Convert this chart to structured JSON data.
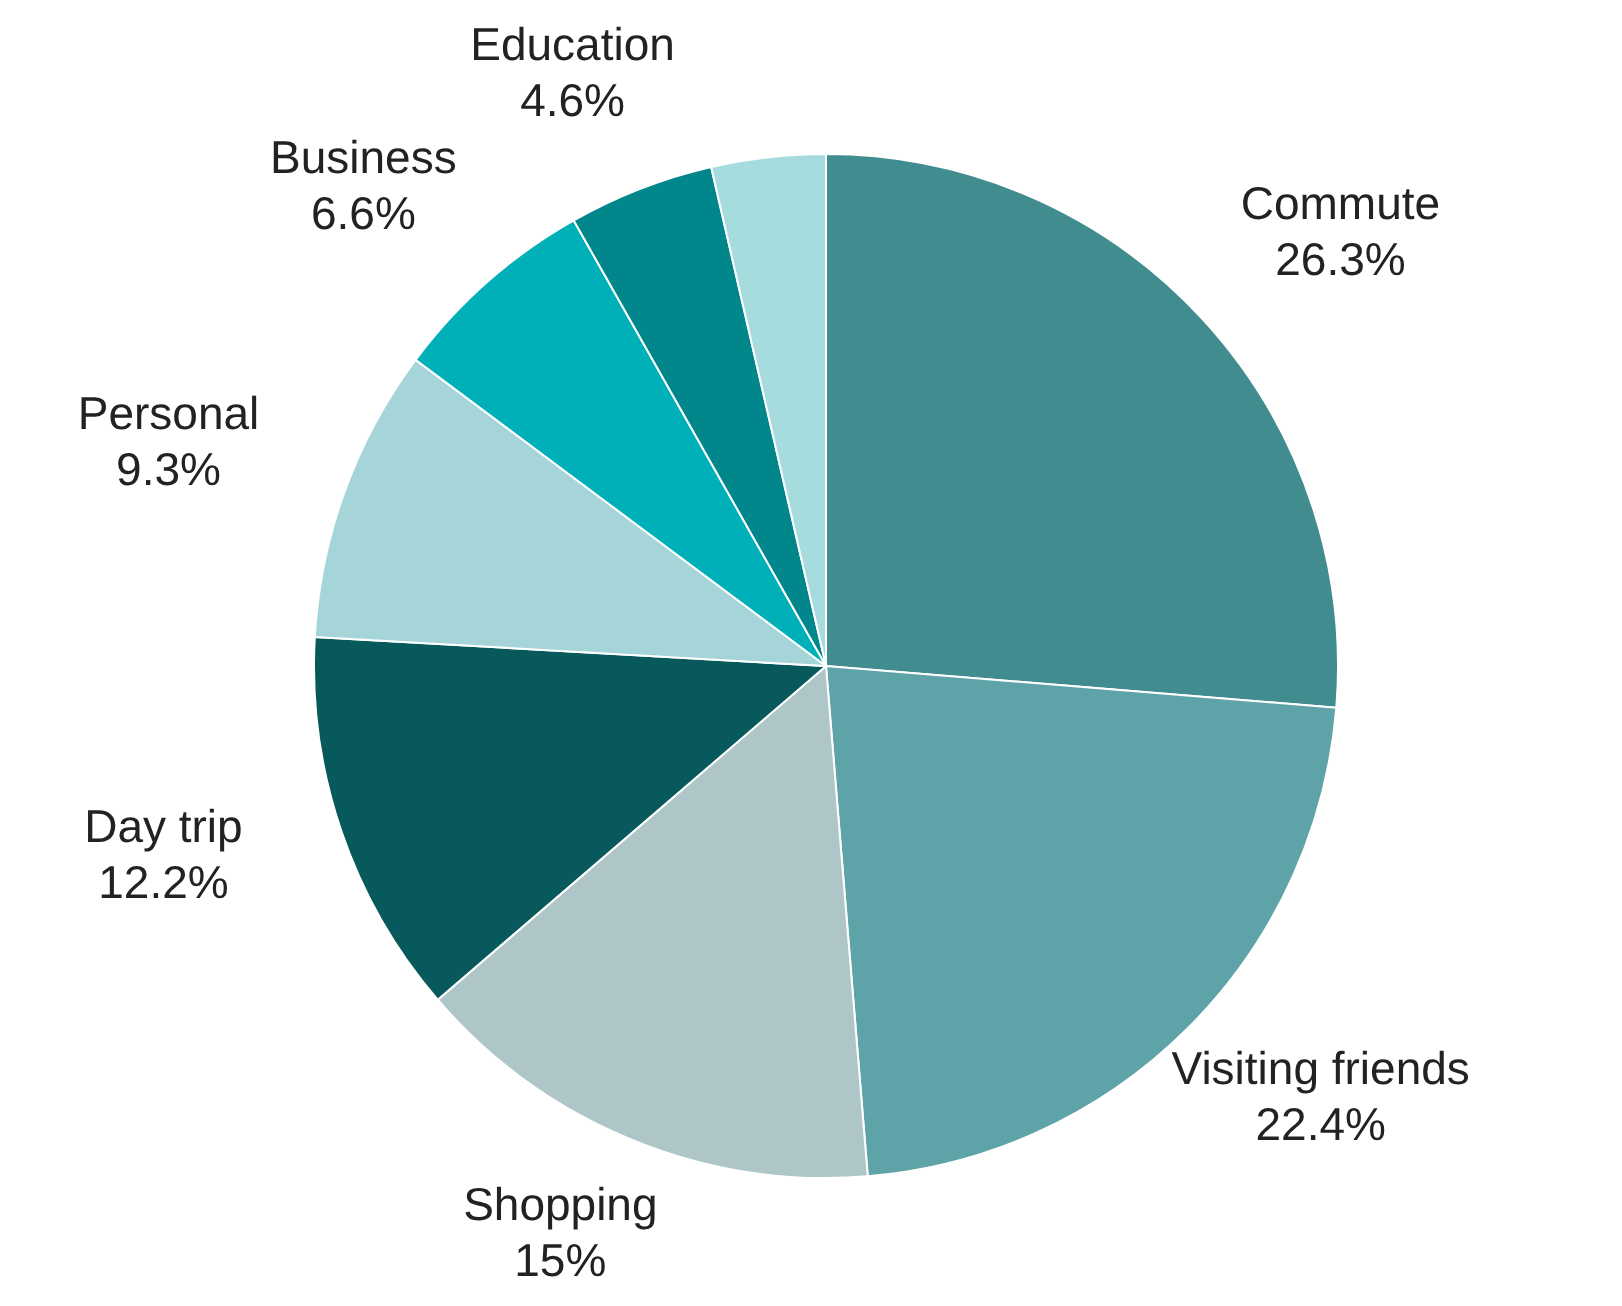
{
  "chart_data": {
    "type": "pie",
    "categories": [
      "Commute",
      "Visiting friends",
      "Shopping",
      "Day trip",
      "Personal",
      "Business",
      "Education",
      null
    ],
    "values": [
      26.3,
      22.4,
      15,
      12.2,
      9.3,
      6.6,
      4.6,
      3.6
    ],
    "value_labels": [
      "26.3%",
      "22.4%",
      "15%",
      "12.2%",
      "9.3%",
      "6.6%",
      "4.6%",
      null
    ],
    "colors": [
      "#408c8f",
      "#5ea3a8",
      "#afc6c9",
      "#07595c",
      "#a5d5d8",
      "#00b0b8",
      "#00868b",
      "#a7dcdf"
    ]
  }
}
